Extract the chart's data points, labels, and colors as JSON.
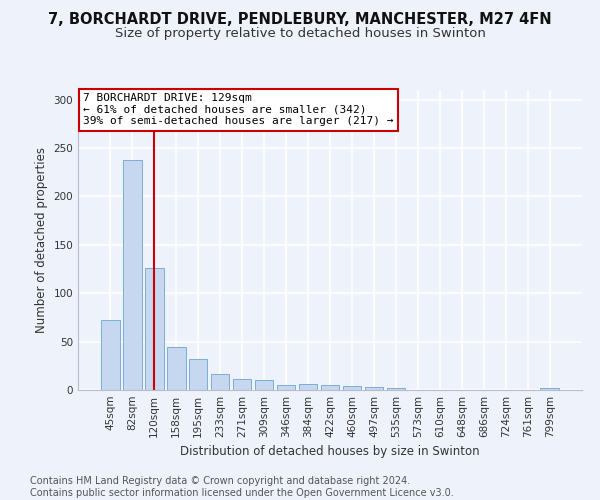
{
  "title_line1": "7, BORCHARDT DRIVE, PENDLEBURY, MANCHESTER, M27 4FN",
  "title_line2": "Size of property relative to detached houses in Swinton",
  "xlabel": "Distribution of detached houses by size in Swinton",
  "ylabel": "Number of detached properties",
  "categories": [
    "45sqm",
    "82sqm",
    "120sqm",
    "158sqm",
    "195sqm",
    "233sqm",
    "271sqm",
    "309sqm",
    "346sqm",
    "384sqm",
    "422sqm",
    "460sqm",
    "497sqm",
    "535sqm",
    "573sqm",
    "610sqm",
    "648sqm",
    "686sqm",
    "724sqm",
    "761sqm",
    "799sqm"
  ],
  "values": [
    72,
    238,
    126,
    44,
    32,
    17,
    11,
    10,
    5,
    6,
    5,
    4,
    3,
    2,
    0,
    0,
    0,
    0,
    0,
    0,
    2
  ],
  "bar_color": "#c5d8ef",
  "bar_edge_color": "#7bafd4",
  "vline_x": 2,
  "vline_color": "#cc0000",
  "annotation_text": "7 BORCHARDT DRIVE: 129sqm\n← 61% of detached houses are smaller (342)\n39% of semi-detached houses are larger (217) →",
  "annotation_box_color": "#ffffff",
  "annotation_box_edge": "#cc0000",
  "ylim": [
    0,
    310
  ],
  "yticks": [
    0,
    50,
    100,
    150,
    200,
    250,
    300
  ],
  "footer_text": "Contains HM Land Registry data © Crown copyright and database right 2024.\nContains public sector information licensed under the Open Government Licence v3.0.",
  "background_color": "#eef2fb",
  "grid_color": "#ffffff",
  "title_fontsize": 10.5,
  "subtitle_fontsize": 9.5,
  "label_fontsize": 8.5,
  "tick_fontsize": 7.5,
  "footer_fontsize": 7,
  "ann_fontsize": 8
}
